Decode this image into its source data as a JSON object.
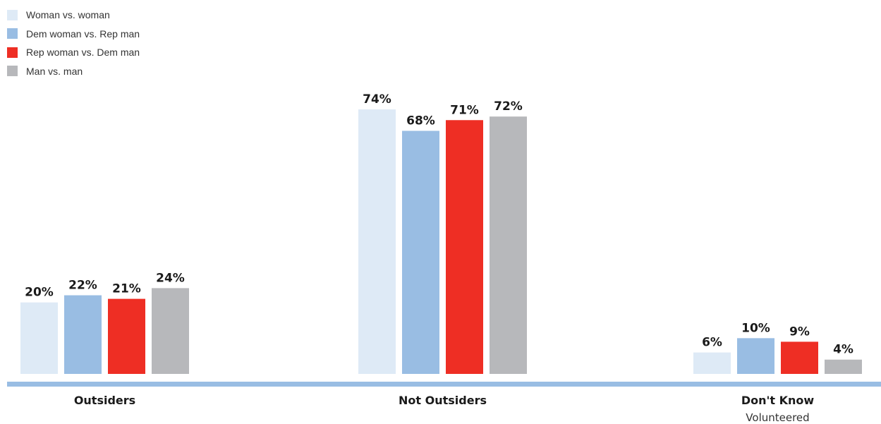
{
  "chart_data": {
    "type": "bar",
    "categories": [
      "Outsiders",
      "Not Outsiders",
      "Don't Know"
    ],
    "category_sublabels": [
      "",
      "",
      "Volunteered"
    ],
    "series": [
      {
        "name": "Woman vs. woman",
        "values": [
          20,
          74,
          6
        ],
        "color": "#deeaf6"
      },
      {
        "name": "Dem woman vs. Rep man",
        "values": [
          22,
          68,
          10
        ],
        "color": "#99bde3"
      },
      {
        "name": "Rep woman vs. Dem man",
        "values": [
          21,
          71,
          9
        ],
        "color": "#ee2e24"
      },
      {
        "name": "Man vs. man",
        "values": [
          24,
          72,
          4
        ],
        "color": "#b7b8bb"
      }
    ],
    "value_suffix": "%",
    "ylim": [
      0,
      75
    ],
    "axis_color": "#99bde3",
    "legend_position": "top-left",
    "grid": false
  }
}
